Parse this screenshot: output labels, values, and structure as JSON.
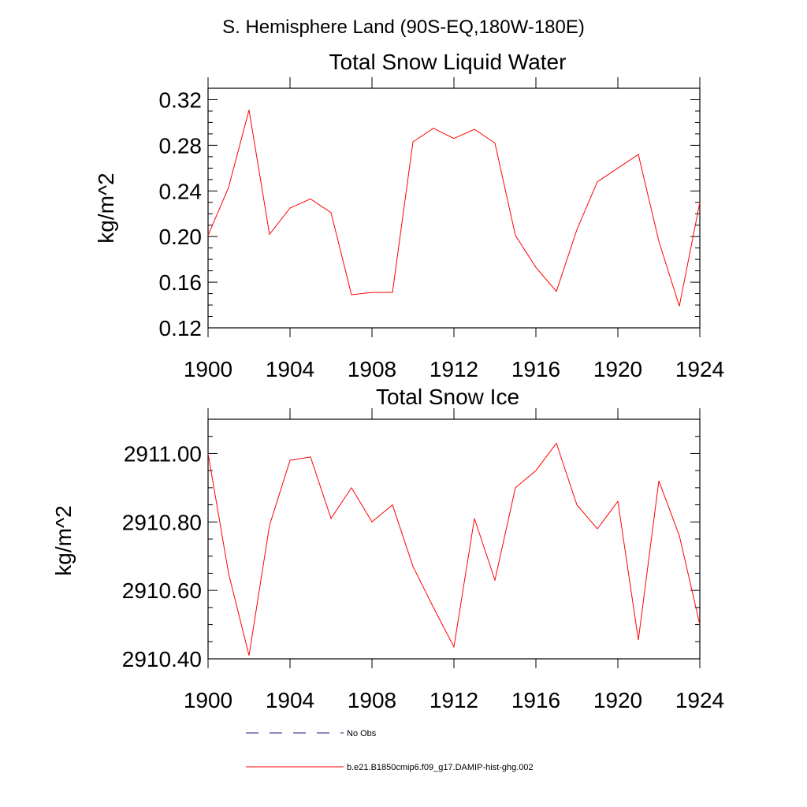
{
  "figure": {
    "region_title": "S. Hemisphere Land (90S-EQ,180W-180E)"
  },
  "chart_data": [
    {
      "type": "line",
      "title": "Total Snow Liquid Water",
      "xlabel": "",
      "ylabel": "kg/m^2",
      "xlim": [
        1900,
        1924
      ],
      "ylim": [
        0.12,
        0.33
      ],
      "xticks": [
        "1900",
        "1904",
        "1908",
        "1912",
        "1916",
        "1920",
        "1924"
      ],
      "yticks": [
        "0.12",
        "0.16",
        "0.20",
        "0.24",
        "0.28",
        "0.32"
      ],
      "series": [
        {
          "name": "b.e21.B1850cmip6.f09_g17.DAMIP-hist-ghg.002",
          "color": "#ff0000",
          "x": [
            1900,
            1901,
            1902,
            1903,
            1904,
            1905,
            1906,
            1907,
            1908,
            1909,
            1910,
            1911,
            1912,
            1913,
            1914,
            1915,
            1916,
            1917,
            1918,
            1919,
            1920,
            1921,
            1922,
            1923,
            1924
          ],
          "values": [
            0.201,
            0.243,
            0.311,
            0.202,
            0.225,
            0.233,
            0.221,
            0.149,
            0.151,
            0.151,
            0.283,
            0.295,
            0.286,
            0.294,
            0.282,
            0.201,
            0.173,
            0.152,
            0.206,
            0.248,
            0.26,
            0.272,
            0.196,
            0.139,
            0.23
          ]
        }
      ]
    },
    {
      "type": "line",
      "title": "Total Snow Ice",
      "xlabel": "",
      "ylabel": "kg/m^2",
      "xlim": [
        1900,
        1924
      ],
      "ylim": [
        2910.4,
        2911.1
      ],
      "xticks": [
        "1900",
        "1904",
        "1908",
        "1912",
        "1916",
        "1920",
        "1924"
      ],
      "yticks": [
        "2910.40",
        "2910.60",
        "2910.80",
        "2911.00"
      ],
      "series": [
        {
          "name": "b.e21.B1850cmip6.f09_g17.DAMIP-hist-ghg.002",
          "color": "#ff0000",
          "x": [
            1900,
            1901,
            1902,
            1903,
            1904,
            1905,
            1906,
            1907,
            1908,
            1909,
            1910,
            1911,
            1912,
            1913,
            1914,
            1915,
            1916,
            1917,
            1918,
            1919,
            1920,
            1921,
            1922,
            1923,
            1924
          ],
          "values": [
            2911.0,
            2910.65,
            2910.41,
            2910.79,
            2910.98,
            2910.99,
            2910.81,
            2910.9,
            2910.8,
            2910.85,
            2910.67,
            2910.55,
            2910.435,
            2910.81,
            2910.63,
            2910.9,
            2910.95,
            2911.03,
            2910.85,
            2910.78,
            2910.86,
            2910.455,
            2910.92,
            2910.76,
            2910.5
          ]
        }
      ]
    }
  ],
  "legend": {
    "placement": "bottom",
    "items": [
      {
        "label": "No Obs",
        "color": "#1a1a7a",
        "style": "dashed"
      },
      {
        "label": "b.e21.B1850cmip6.f09_g17.DAMIP-hist-ghg.002",
        "color": "#ff0000",
        "style": "solid"
      }
    ]
  }
}
